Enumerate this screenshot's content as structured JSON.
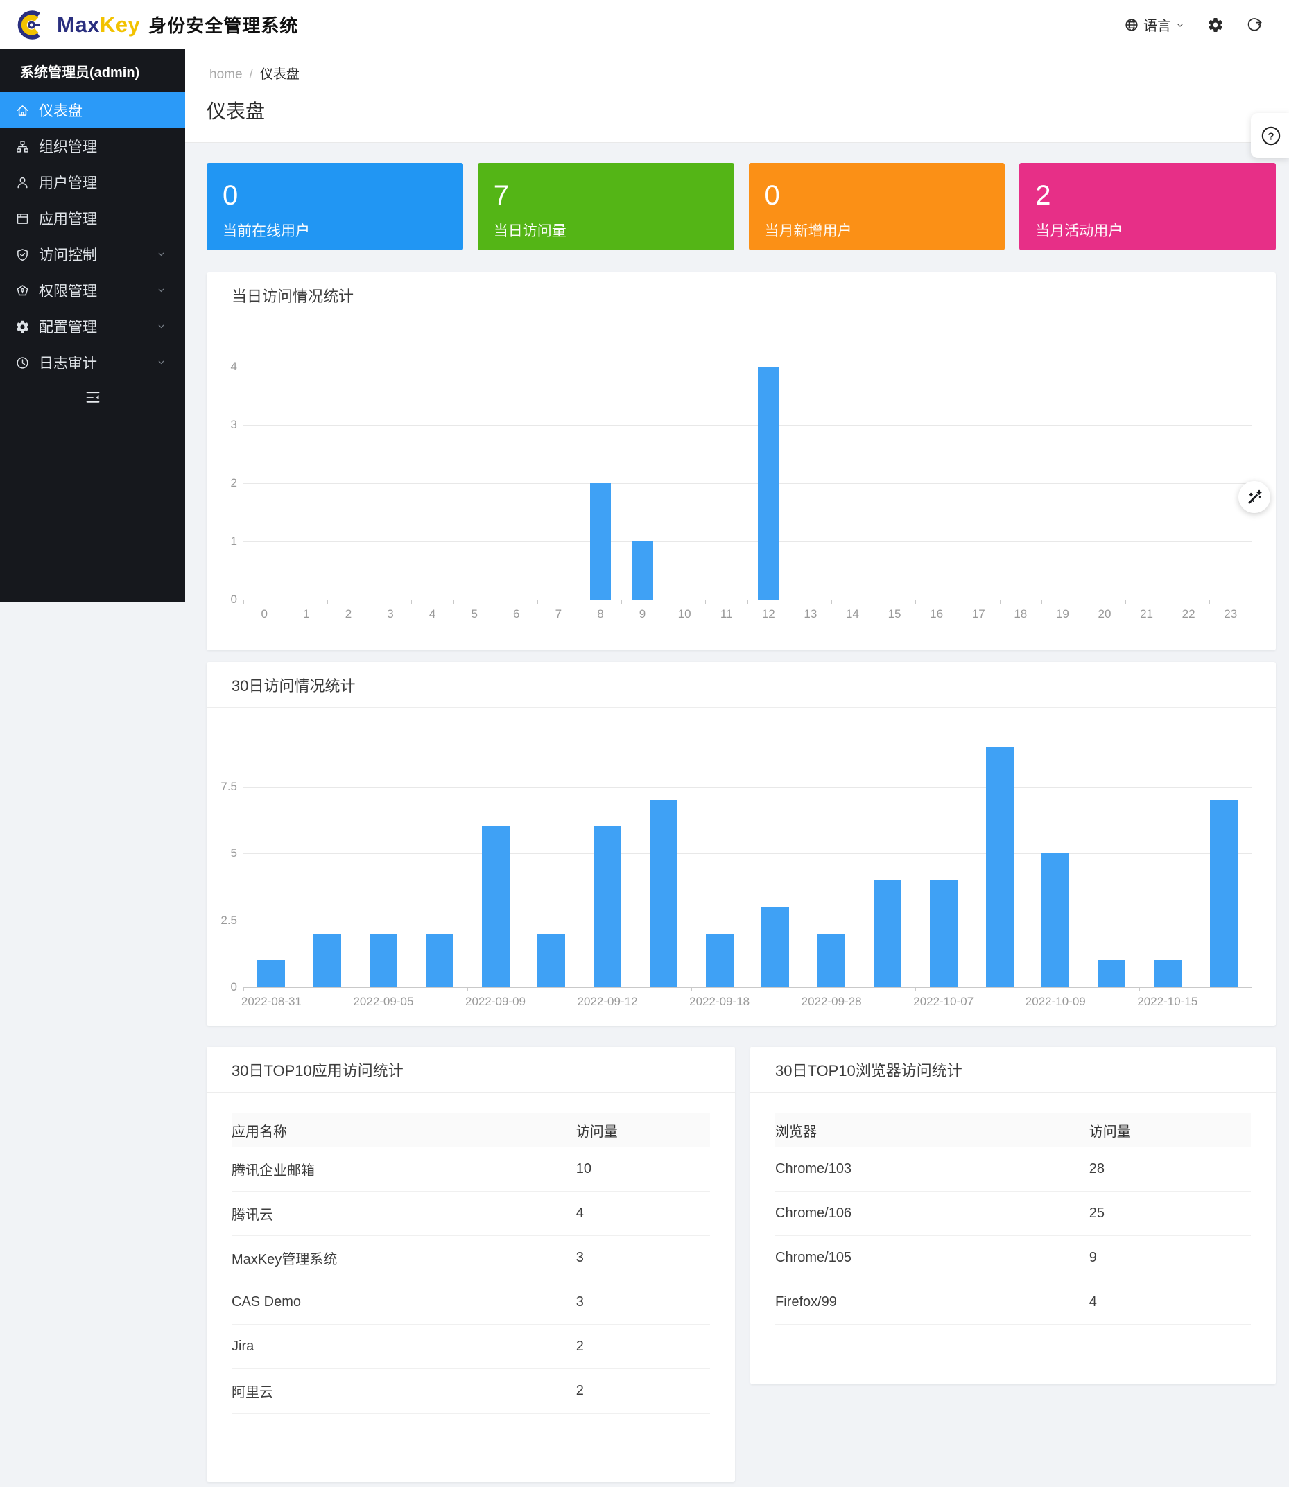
{
  "header": {
    "brand_max": "Max",
    "brand_key": "Key",
    "app_title": "身份安全管理系统",
    "language_label": "语言"
  },
  "sidebar": {
    "admin_label": "系统管理员(admin)",
    "items": [
      {
        "id": "dashboard",
        "icon": "home",
        "label": "仪表盘",
        "active": true,
        "expandable": false
      },
      {
        "id": "organization",
        "icon": "org",
        "label": "组织管理",
        "active": false,
        "expandable": false
      },
      {
        "id": "users",
        "icon": "user",
        "label": "用户管理",
        "active": false,
        "expandable": false
      },
      {
        "id": "applications",
        "icon": "app",
        "label": "应用管理",
        "active": false,
        "expandable": false
      },
      {
        "id": "access-control",
        "icon": "shield",
        "label": "访问控制",
        "active": false,
        "expandable": true
      },
      {
        "id": "permissions",
        "icon": "pentagon",
        "label": "权限管理",
        "active": false,
        "expandable": true
      },
      {
        "id": "configuration",
        "icon": "gear",
        "label": "配置管理",
        "active": false,
        "expandable": true
      },
      {
        "id": "log-audit",
        "icon": "clock",
        "label": "日志审计",
        "active": false,
        "expandable": true
      }
    ]
  },
  "breadcrumb": {
    "home": "home",
    "separator": "/",
    "current": "仪表盘"
  },
  "page": {
    "title": "仪表盘"
  },
  "stats": [
    {
      "value": "0",
      "label": "当前在线用户",
      "color": "#2196f3"
    },
    {
      "value": "7",
      "label": "当日访问量",
      "color": "#54b516"
    },
    {
      "value": "0",
      "label": "当月新增用户",
      "color": "#fb9016"
    },
    {
      "value": "2",
      "label": "当月活动用户",
      "color": "#e72f87"
    }
  ],
  "chart_data": [
    {
      "type": "bar",
      "title": "当日访问情况统计",
      "categories": [
        "0",
        "1",
        "2",
        "3",
        "4",
        "5",
        "6",
        "7",
        "8",
        "9",
        "10",
        "11",
        "12",
        "13",
        "14",
        "15",
        "16",
        "17",
        "18",
        "19",
        "20",
        "21",
        "22",
        "23"
      ],
      "values": [
        0,
        0,
        0,
        0,
        0,
        0,
        0,
        0,
        2,
        1,
        0,
        0,
        4,
        0,
        0,
        0,
        0,
        0,
        0,
        0,
        0,
        0,
        0,
        0
      ],
      "y_ticks": [
        0,
        1,
        2,
        3,
        4
      ],
      "ylim": [
        0,
        4.4
      ],
      "xlabel": "",
      "ylabel": "",
      "grid": true,
      "legend": "none",
      "bar_color": "#3fa1f5",
      "x_label_every": 1
    },
    {
      "type": "bar",
      "title": "30日访问情况统计",
      "categories": [
        "2022-08-31",
        "",
        "2022-09-05",
        "",
        "2022-09-09",
        "",
        "2022-09-12",
        "",
        "2022-09-18",
        "",
        "2022-09-28",
        "",
        "2022-10-07",
        "",
        "2022-10-09",
        "",
        "2022-10-15",
        ""
      ],
      "values": [
        1,
        2,
        2,
        2,
        6,
        2,
        6,
        7,
        2,
        3,
        2,
        4,
        4,
        9,
        5,
        1,
        1,
        7
      ],
      "y_ticks": [
        0,
        2.5,
        5,
        7.5
      ],
      "ylim": [
        0,
        9.6
      ],
      "xlabel": "",
      "ylabel": "",
      "grid": true,
      "legend": "none",
      "bar_color": "#3fa1f5",
      "x_label_every": 2
    }
  ],
  "tables": [
    {
      "title": "30日TOP10应用访问统计",
      "columns": [
        "应用名称",
        "访问量"
      ],
      "rows": [
        [
          "腾讯企业邮箱",
          "10"
        ],
        [
          "腾讯云",
          "4"
        ],
        [
          "MaxKey管理系统",
          "3"
        ],
        [
          "CAS Demo",
          "3"
        ],
        [
          "Jira",
          "2"
        ],
        [
          "阿里云",
          "2"
        ]
      ]
    },
    {
      "title": "30日TOP10浏览器访问统计",
      "columns": [
        "浏览器",
        "访问量"
      ],
      "rows": [
        [
          "Chrome/103",
          "28"
        ],
        [
          "Chrome/106",
          "25"
        ],
        [
          "Chrome/105",
          "9"
        ],
        [
          "Firefox/99",
          "4"
        ]
      ]
    }
  ],
  "floating": {
    "help": "?"
  }
}
